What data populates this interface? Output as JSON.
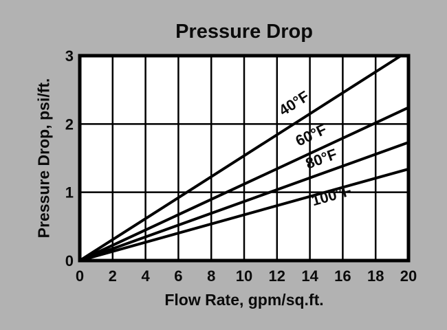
{
  "window": {
    "background_color": "#b2b2b2",
    "plot_background_color": "#ffffff",
    "stroke_color": "#000000",
    "text_color": "#0b0b0b"
  },
  "chart_data": {
    "type": "line",
    "title": "Pressure Drop",
    "xlabel": "Flow Rate, gpm/sq.ft.",
    "ylabel": "Pressure Drop, psi/ft.",
    "xlim": [
      0,
      20
    ],
    "ylim": [
      0,
      3
    ],
    "x_ticks": [
      0,
      2,
      4,
      6,
      8,
      10,
      12,
      14,
      16,
      18,
      20
    ],
    "y_ticks": [
      0,
      1,
      2,
      3
    ],
    "grid": true,
    "legend_position": "inline-labels-on-lines",
    "series": [
      {
        "name": "40°F",
        "x": [
          0,
          20
        ],
        "values": [
          0,
          3.07
        ],
        "label": {
          "x": 13.2,
          "y": 2.24
        }
      },
      {
        "name": "60°F",
        "x": [
          0,
          20
        ],
        "values": [
          0,
          2.24
        ],
        "label": {
          "x": 14.2,
          "y": 1.77
        }
      },
      {
        "name": "80°F",
        "x": [
          0,
          20
        ],
        "values": [
          0,
          1.73
        ],
        "label": {
          "x": 14.8,
          "y": 1.42
        }
      },
      {
        "name": "100°F",
        "x": [
          0,
          20
        ],
        "values": [
          0,
          1.34
        ],
        "label": {
          "x": 15.4,
          "y": 0.88
        }
      }
    ]
  }
}
